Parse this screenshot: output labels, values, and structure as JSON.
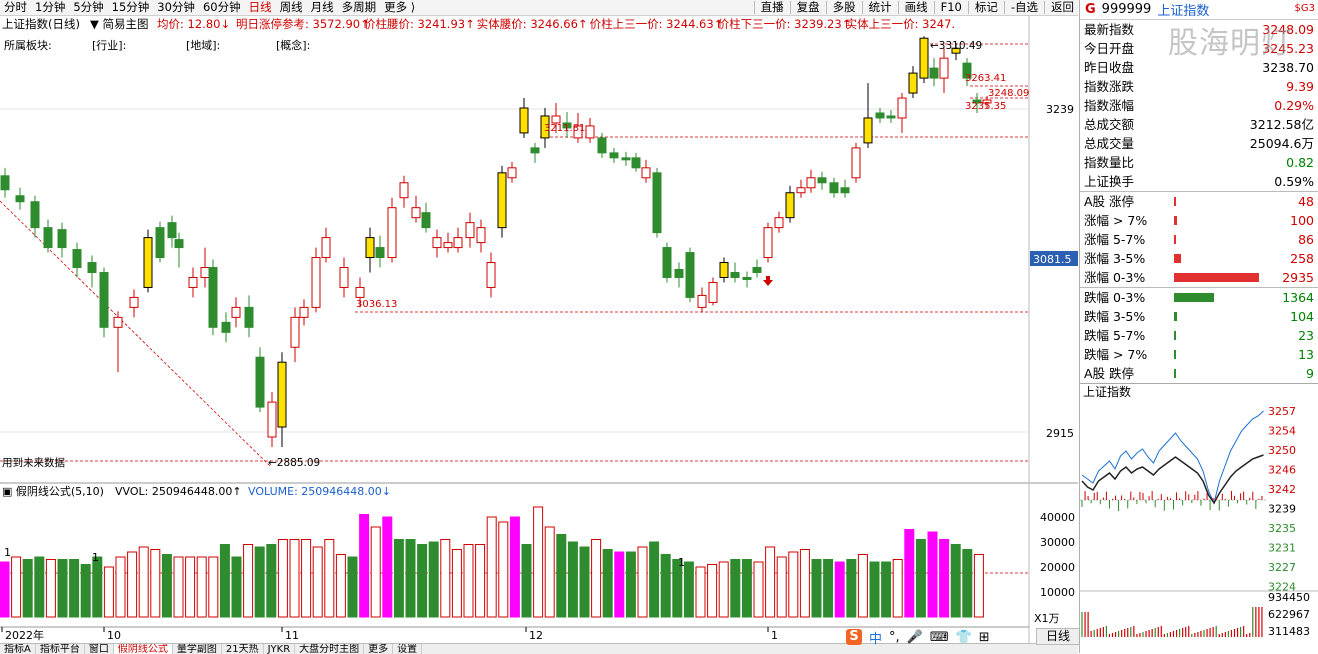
{
  "toolbar": {
    "left": [
      "分时",
      "1分钟",
      "5分钟",
      "15分钟",
      "30分钟",
      "60分钟",
      "日线",
      "周线",
      "月线",
      "多周期",
      "更多 ⟩"
    ],
    "active": "日线",
    "right": [
      "直播",
      "复盘",
      "多股",
      "统计",
      "画线",
      "F10",
      "标记",
      "-自选",
      "返回"
    ]
  },
  "info_bar": {
    "title": "上证指数(日线)",
    "mode": "简易主图",
    "avg": "均价: 12.80",
    "items": [
      "明日涨停参考: 3572.90",
      "价柱腰价: 3241.93",
      "实体腰价: 3246.66",
      "价柱上三一价: 3244.63",
      "价柱下三一价: 3239.23",
      "实体上三一价: 3247."
    ]
  },
  "sector_bar": {
    "label": "所属板块:",
    "industry": "[行业]:",
    "region": "[地域]:",
    "concept": "[概念]:"
  },
  "price_axis": {
    "labels": [
      "3239",
      "3081.5",
      "2915"
    ],
    "current": "3081.5"
  },
  "annotations": {
    "high": "3310.49",
    "p3263": "3263.41",
    "p3248": "3248.09",
    "p3235": "3235.35",
    "p3211": "3211.81",
    "p3036": "3036.13",
    "low": "2885.09",
    "future": "用到未来数据"
  },
  "volume": {
    "title": "假阴线公式(5,10)",
    "vvol": "VVOL: 250946448.00",
    "volume": "VOLUME: 250946448.00",
    "axis": [
      "40000",
      "30000",
      "20000",
      "10000"
    ],
    "unit": "X1万",
    "markers": [
      "1",
      "1",
      "1"
    ]
  },
  "date_axis": [
    "2022年",
    "10",
    "11",
    "12",
    "1"
  ],
  "bottom_tabs": [
    "指标A",
    "指标平台",
    "窗口",
    "假阴线公式",
    "量学副图",
    "21天热",
    "JYKR",
    "大盘分时主图",
    "更多",
    "设置"
  ],
  "bottom_active": "假阴线公式",
  "day_tab": "日线",
  "ime": {
    "logo": "S",
    "zh": "中",
    "items": [
      "°,",
      "🎤",
      "⌨",
      "👕",
      "⊞"
    ]
  },
  "right_panel": {
    "header": {
      "g": "G",
      "code": "999999",
      "name": "上证指数",
      "tag": "$G3",
      "watermark": "股海明灯"
    },
    "stats": [
      {
        "label": "最新指数",
        "value": "3248.09",
        "color": "red"
      },
      {
        "label": "今日开盘",
        "value": "3245.23",
        "color": "red"
      },
      {
        "label": "昨日收盘",
        "value": "3238.70",
        "color": "black"
      },
      {
        "label": "指数涨跌",
        "value": "9.39",
        "color": "red"
      },
      {
        "label": "指数涨幅",
        "value": "0.29%",
        "color": "red"
      },
      {
        "label": "总成交额",
        "value": "3212.58亿",
        "color": "black"
      },
      {
        "label": "总成交量",
        "value": "25094.6万",
        "color": "black"
      },
      {
        "label": "指数量比",
        "value": "0.82",
        "color": "green"
      },
      {
        "label": "上证换手",
        "value": "0.59%",
        "color": "black"
      }
    ],
    "up_dist": [
      {
        "label": "A股 涨停",
        "count": "48",
        "frac": 0.016
      },
      {
        "label": "涨幅 > 7%",
        "count": "100",
        "frac": 0.034
      },
      {
        "label": "涨幅 5-7%",
        "count": "86",
        "frac": 0.029
      },
      {
        "label": "涨幅 3-5%",
        "count": "258",
        "frac": 0.088
      },
      {
        "label": "涨幅 0-3%",
        "count": "2935",
        "frac": 1.0
      }
    ],
    "down_dist": [
      {
        "label": "跌幅 0-3%",
        "count": "1364",
        "frac": 0.465
      },
      {
        "label": "跌幅 3-5%",
        "count": "104",
        "frac": 0.035
      },
      {
        "label": "跌幅 5-7%",
        "count": "23",
        "frac": 0.008
      },
      {
        "label": "跌幅 > 7%",
        "count": "13",
        "frac": 0.004
      },
      {
        "label": "A股 跌停",
        "count": "9",
        "frac": 0.003
      }
    ],
    "mini_title": "上证指数",
    "mini_axis": [
      "3257",
      "3254",
      "3250",
      "3246",
      "3242",
      "3239",
      "3235",
      "3231",
      "3227",
      "3224"
    ],
    "mini_vol_axis": [
      "934450",
      "622967",
      "311483"
    ]
  },
  "colors": {
    "up": "#d00000",
    "down": "#2e8b2e",
    "yellow": "#e6c200",
    "magenta": "#ff00ff"
  }
}
